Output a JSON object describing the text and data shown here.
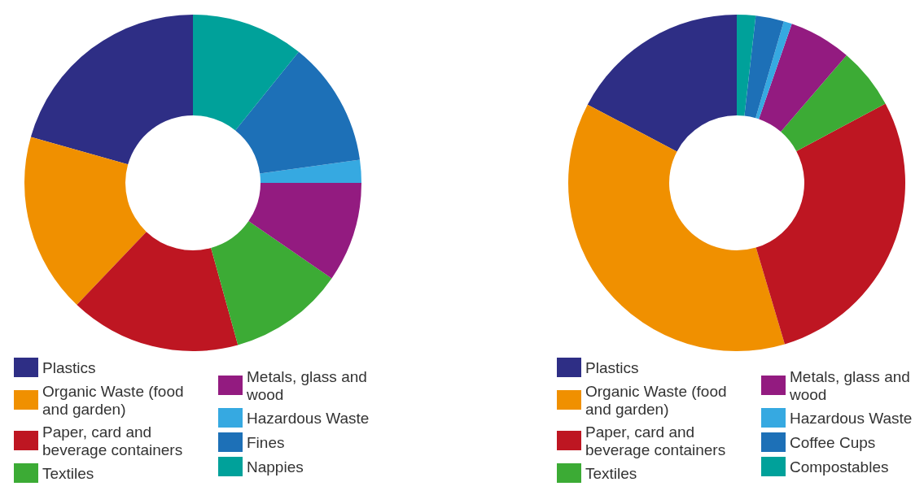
{
  "chart_data": [
    {
      "type": "donut",
      "categories": [
        "Plastics",
        "Organic Waste (food and garden)",
        "Paper, card and beverage containers",
        "Textiles",
        "Metals, glass and wood",
        "Hazardous Waste",
        "Fines",
        "Nappies"
      ],
      "values": [
        20.6,
        17.3,
        16.4,
        11.1,
        9.6,
        2.2,
        12,
        10.8
      ],
      "colors": [
        "#2e2e85",
        "#f09000",
        "#be1622",
        "#3cab35",
        "#931b80",
        "#36a9e1",
        "#1d70b7",
        "#00a19a"
      ],
      "legend": "bottom"
    },
    {
      "type": "donut",
      "categories": [
        "Plastics",
        "Organic Waste (food and garden)",
        "Paper, card and beverage containers",
        "Textiles",
        "Metals, glass and wood",
        "Hazardous Waste",
        "Coffee Cups",
        "Compostables"
      ],
      "values": [
        17.3,
        37.3,
        28.2,
        5.9,
        6.0,
        0.8,
        2.7,
        1.8
      ],
      "colors": [
        "#2e2e85",
        "#f09000",
        "#be1622",
        "#3cab35",
        "#931b80",
        "#36a9e1",
        "#1d70b7",
        "#00a19a"
      ],
      "legend": "bottom"
    }
  ]
}
